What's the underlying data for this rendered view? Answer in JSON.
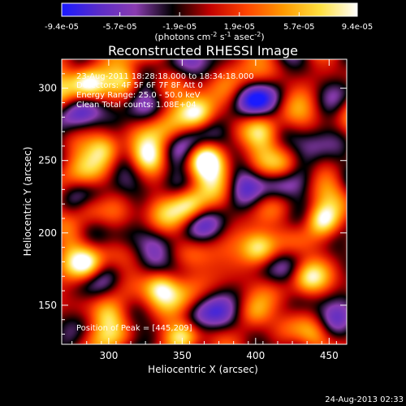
{
  "colorbar": {
    "tick_labels": [
      "-9.4e-05",
      "-5.7e-05",
      "-1.9e-05",
      "1.9e-05",
      "5.7e-05",
      "9.4e-05"
    ],
    "tick_values": [
      -9.4e-05,
      -5.7e-05,
      -1.9e-05,
      1.9e-05,
      5.7e-05,
      9.4e-05
    ],
    "range": [
      -9.4e-05,
      9.4e-05
    ],
    "units_parts": [
      "(photons cm",
      "-2",
      " s",
      "-1",
      " asec",
      "-2",
      ")"
    ],
    "colors": [
      "#1a1aff",
      "#5a2cc8",
      "#8a3cb0",
      "#000000",
      "#c00000",
      "#ff4400",
      "#ff9a00",
      "#ffe040",
      "#ffffff"
    ]
  },
  "chart_data": {
    "type": "heatmap",
    "title": "Reconstructed RHESSI Image",
    "xlabel": "Heliocentric X (arcsec)",
    "ylabel": "Heliocentric Y (arcsec)",
    "xlim": [
      268,
      462
    ],
    "ylim": [
      123,
      320
    ],
    "xticks": [
      300,
      350,
      400,
      450
    ],
    "yticks": [
      150,
      200,
      250,
      300
    ],
    "annotations": [
      "23-Aug-2011 18:28:18.000 to 18:34:18.000",
      "Detectors: 4F 5F 6F 7F 8F  Att 0",
      "Energy Range: 25.0 - 50.0 keV",
      "Clean    Total counts: 1.08E+04"
    ],
    "peak_label": "Position of Peak = [445,209]",
    "peak_position": [
      445,
      209
    ],
    "bright_sources": [
      {
        "x": 286,
        "y": 303,
        "rel": 0.9
      },
      {
        "x": 312,
        "y": 305,
        "rel": 0.85
      },
      {
        "x": 360,
        "y": 283,
        "rel": 0.75
      },
      {
        "x": 327,
        "y": 253,
        "rel": 0.85
      },
      {
        "x": 365,
        "y": 252,
        "rel": 0.95
      },
      {
        "x": 297,
        "y": 258,
        "rel": 0.75
      },
      {
        "x": 355,
        "y": 220,
        "rel": 0.7
      },
      {
        "x": 404,
        "y": 270,
        "rel": 0.55
      },
      {
        "x": 445,
        "y": 209,
        "rel": 1.0
      },
      {
        "x": 285,
        "y": 178,
        "rel": 0.9
      },
      {
        "x": 335,
        "y": 163,
        "rel": 0.85
      },
      {
        "x": 402,
        "y": 190,
        "rel": 0.7
      },
      {
        "x": 436,
        "y": 170,
        "rel": 0.6
      },
      {
        "x": 285,
        "y": 218,
        "rel": 0.55
      },
      {
        "x": 350,
        "y": 128,
        "rel": 0.9
      },
      {
        "x": 440,
        "y": 128,
        "rel": 0.55
      },
      {
        "x": 300,
        "y": 143,
        "rel": 0.55
      },
      {
        "x": 400,
        "y": 145,
        "rel": 0.5
      },
      {
        "x": 420,
        "y": 245,
        "rel": 0.5
      }
    ],
    "dark_sources": [
      {
        "x": 303,
        "y": 280,
        "rel": 0.6
      },
      {
        "x": 415,
        "y": 232,
        "rel": 0.6
      },
      {
        "x": 378,
        "y": 138,
        "rel": 0.7
      },
      {
        "x": 438,
        "y": 260,
        "rel": 0.5
      },
      {
        "x": 395,
        "y": 295,
        "rel": 0.5
      },
      {
        "x": 450,
        "y": 140,
        "rel": 0.6
      },
      {
        "x": 310,
        "y": 195,
        "rel": 0.55
      }
    ],
    "grid": false
  },
  "footer": {
    "timestamp": "24-Aug-2013 02:33"
  }
}
